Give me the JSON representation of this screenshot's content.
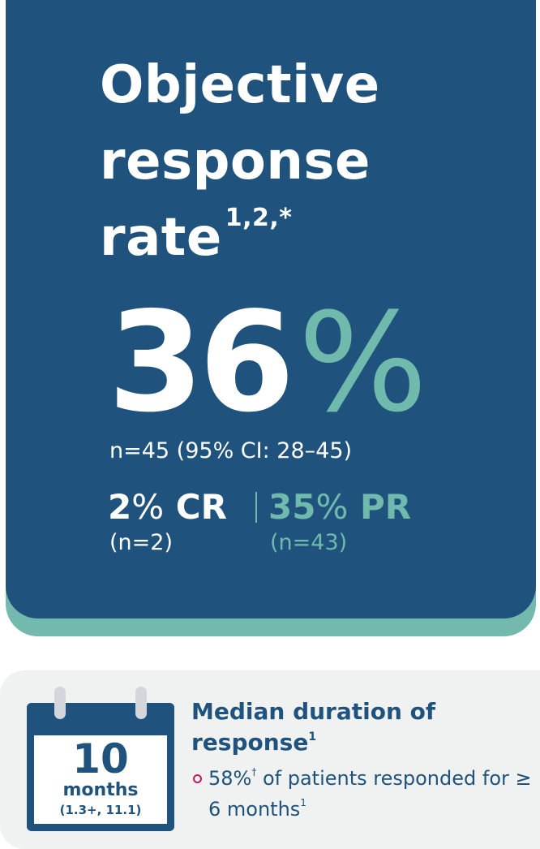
{
  "orr": {
    "title_line1": "Objective",
    "title_line2": "response",
    "title_line3": "rate",
    "title_refs": "1,2,*",
    "value": "36",
    "percent_sign": "%",
    "ci_text": "n=45 (95% CI: 28–45)",
    "cr": {
      "value": "2",
      "pct": "%",
      "label": " CR",
      "n": "(n=2)"
    },
    "pr": {
      "value": "35",
      "pct": "%",
      "label": " PR",
      "n": "(n=43)"
    }
  },
  "dor": {
    "calendar_value": "10",
    "calendar_unit": "months",
    "calendar_range": "(1.3+, 11.1)",
    "title": "Median duration of response",
    "title_ref": "1",
    "bullet_pre": "58%",
    "bullet_dagger": "†",
    "bullet_post": " of patients responded for ≥ 6 months",
    "bullet_ref": "1"
  },
  "colors": {
    "navy": "#1f537d",
    "teal": "#6fbaad",
    "bullet": "#c2185b",
    "card_bg": "#f0f1f1"
  }
}
